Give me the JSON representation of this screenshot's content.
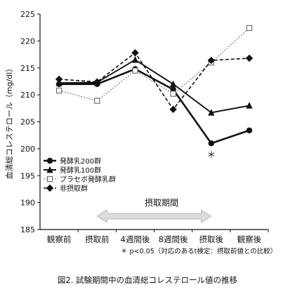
{
  "figure": {
    "caption": "図2. 試験期間中の血清総コレステロール値の推移",
    "footnote": "＊ p<0.05（対応のあるt検定：摂取前値との比較）",
    "period_label": "摂取期間",
    "significance_mark": "＊"
  },
  "chart_data": {
    "type": "line",
    "ylabel": "血清総コレステロール（mg/dl）",
    "ylim": [
      185,
      225
    ],
    "yticks": [
      "185",
      "190",
      "195",
      "200",
      "205",
      "210",
      "215",
      "220",
      "225"
    ],
    "categories": [
      "観察前",
      "摂取前",
      "4週間後",
      "8週間後",
      "摂取後",
      "観察後"
    ],
    "grid": false,
    "legend_position": "bottom-left",
    "series": [
      {
        "name": "発酵乳200群",
        "marker": "circle",
        "line": "solid-thick",
        "color": "#111111",
        "values": [
          212.0,
          212.0,
          214.8,
          211.0,
          201.0,
          203.4
        ]
      },
      {
        "name": "発酵乳100群",
        "marker": "triangle",
        "line": "solid",
        "color": "#111111",
        "values": [
          212.2,
          212.3,
          216.5,
          212.0,
          206.7,
          208.0
        ]
      },
      {
        "name": "プラセボ発酵乳群",
        "marker": "square-open",
        "line": "dotted",
        "color": "#777777",
        "values": [
          210.8,
          208.9,
          214.5,
          210.2,
          216.0,
          222.4
        ]
      },
      {
        "name": "非摂取群",
        "marker": "diamond",
        "line": "dashed",
        "color": "#111111",
        "values": [
          212.9,
          212.4,
          217.8,
          207.3,
          216.4,
          216.8
        ]
      }
    ]
  }
}
